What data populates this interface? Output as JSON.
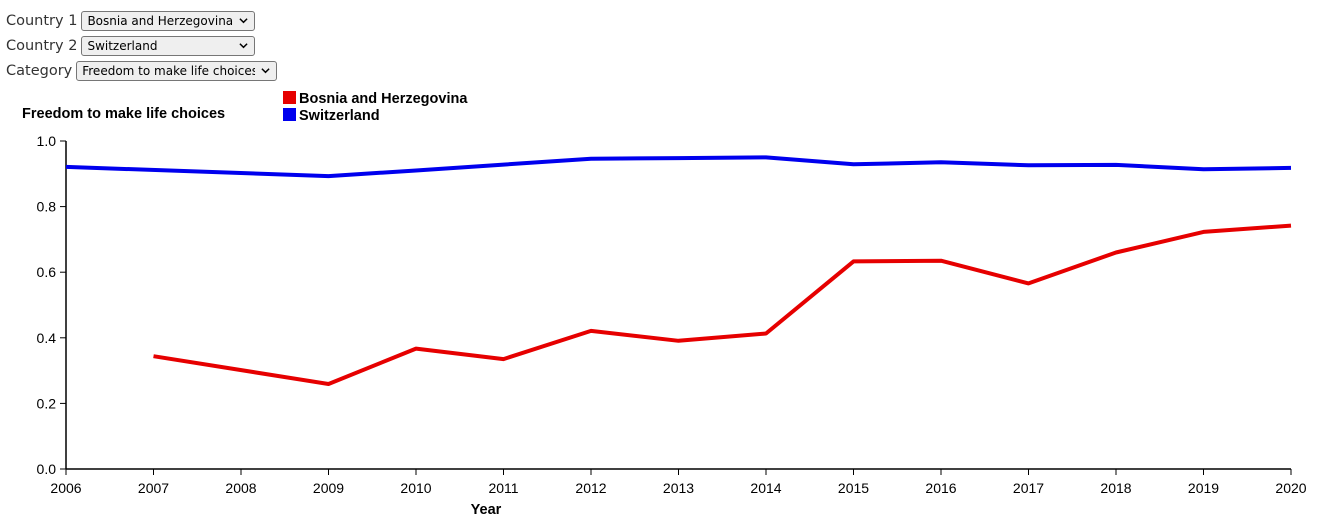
{
  "controls": {
    "country1": {
      "label": "Country 1",
      "value": "Bosnia and Herzegovina"
    },
    "country2": {
      "label": "Country 2",
      "value": "Switzerland"
    },
    "category": {
      "label": "Category",
      "value": "Freedom to make life choices"
    }
  },
  "chart_data": {
    "type": "line",
    "title": "Freedom to make life choices",
    "xlabel": "Year",
    "ylabel": "Freedom to make life choices",
    "xlim": [
      2006,
      2020
    ],
    "ylim": [
      0,
      1
    ],
    "x_ticks": [
      "2006",
      "2007",
      "2008",
      "2009",
      "2010",
      "2011",
      "2012",
      "2013",
      "2014",
      "2015",
      "2016",
      "2017",
      "2018",
      "2019",
      "2020"
    ],
    "y_ticks": [
      "0.0",
      "0.2",
      "0.4",
      "0.6",
      "0.8",
      "1.0"
    ],
    "legend_position": "top-center",
    "grid": false,
    "series": [
      {
        "name": "Bosnia and Herzegovina",
        "color": "#e60000",
        "points": [
          {
            "x": 2007,
            "y": 0.344
          },
          {
            "x": 2009,
            "y": 0.259
          },
          {
            "x": 2010,
            "y": 0.367
          },
          {
            "x": 2011,
            "y": 0.335
          },
          {
            "x": 2012,
            "y": 0.421
          },
          {
            "x": 2013,
            "y": 0.391
          },
          {
            "x": 2014,
            "y": 0.413
          },
          {
            "x": 2015,
            "y": 0.633
          },
          {
            "x": 2016,
            "y": 0.635
          },
          {
            "x": 2017,
            "y": 0.566
          },
          {
            "x": 2018,
            "y": 0.66
          },
          {
            "x": 2019,
            "y": 0.723
          },
          {
            "x": 2020,
            "y": 0.742
          }
        ]
      },
      {
        "name": "Switzerland",
        "color": "#0000ee",
        "points": [
          {
            "x": 2006,
            "y": 0.921
          },
          {
            "x": 2009,
            "y": 0.893
          },
          {
            "x": 2010,
            "y": 0.91
          },
          {
            "x": 2011,
            "y": 0.928
          },
          {
            "x": 2012,
            "y": 0.946
          },
          {
            "x": 2013,
            "y": 0.948
          },
          {
            "x": 2014,
            "y": 0.95
          },
          {
            "x": 2015,
            "y": 0.929
          },
          {
            "x": 2016,
            "y": 0.935
          },
          {
            "x": 2017,
            "y": 0.926
          },
          {
            "x": 2018,
            "y": 0.927
          },
          {
            "x": 2019,
            "y": 0.914
          },
          {
            "x": 2020,
            "y": 0.918
          }
        ]
      }
    ]
  }
}
